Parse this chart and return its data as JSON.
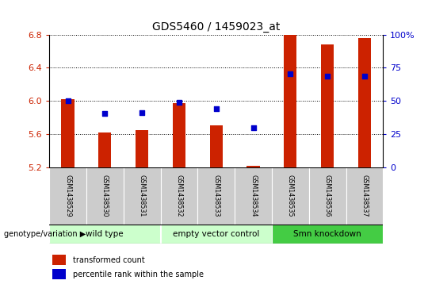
{
  "title": "GDS5460 / 1459023_at",
  "samples": [
    "GSM1438529",
    "GSM1438530",
    "GSM1438531",
    "GSM1438532",
    "GSM1438533",
    "GSM1438534",
    "GSM1438535",
    "GSM1438536",
    "GSM1438537"
  ],
  "bar_values": [
    6.02,
    5.62,
    5.65,
    5.97,
    5.7,
    5.21,
    6.8,
    6.68,
    6.76
  ],
  "blue_values": [
    6.0,
    5.85,
    5.86,
    5.98,
    5.9,
    5.67,
    6.33,
    6.3,
    6.3
  ],
  "bar_bottom": 5.2,
  "ylim": [
    5.2,
    6.8
  ],
  "yticks": [
    5.2,
    5.6,
    6.0,
    6.4,
    6.8
  ],
  "right_yticks": [
    0,
    25,
    50,
    75,
    100
  ],
  "right_ytick_labels": [
    "0",
    "25",
    "50",
    "75",
    "100%"
  ],
  "bar_color": "#cc2200",
  "blue_color": "#0000cc",
  "groups": [
    {
      "label": "wild type",
      "indices": [
        0,
        1,
        2
      ]
    },
    {
      "label": "empty vector control",
      "indices": [
        3,
        4,
        5
      ]
    },
    {
      "label": "Smn knockdown",
      "indices": [
        6,
        7,
        8
      ]
    }
  ],
  "group_bg_colors": [
    "#ccffcc",
    "#ccffcc",
    "#44cc44"
  ],
  "legend_red": "transformed count",
  "legend_blue": "percentile rank within the sample",
  "genotype_label": "genotype/variation",
  "title_fontsize": 10,
  "axis_color_left": "#cc2200",
  "axis_color_right": "#0000cc",
  "sample_bg_color": "#cccccc",
  "bar_width": 0.35
}
